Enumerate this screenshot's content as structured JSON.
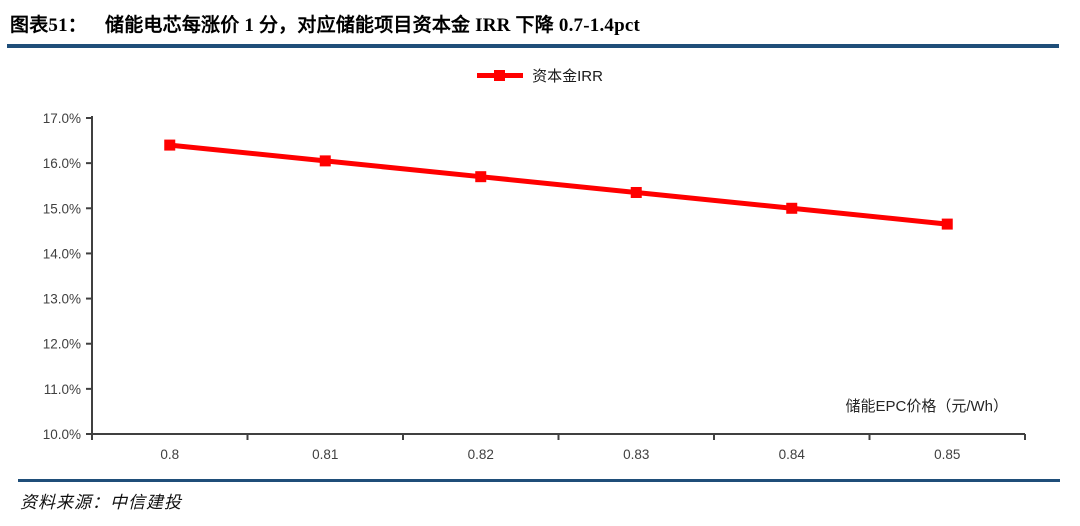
{
  "header": {
    "figure_label": "图表51：",
    "title": "储能电芯每涨价 1 分，对应储能项目资本金 IRR 下降 0.7-1.4pct"
  },
  "footer": {
    "source": "资料来源：中信建投"
  },
  "colors": {
    "accent_red": "#FF0000",
    "divider_blue": "#1F4E79",
    "axis": "#404040",
    "tick_label": "#404040",
    "axis_title": "#262626"
  },
  "chart_data": {
    "type": "line",
    "title": "储能电芯每涨价 1 分，对应储能项目资本金 IRR 下降 0.7-1.4pct",
    "x_labels": [
      "0.8",
      "0.81",
      "0.82",
      "0.83",
      "0.84",
      "0.85"
    ],
    "series": [
      {
        "name": "资本金IRR",
        "color": "#FF0000",
        "values": [
          16.4,
          16.05,
          15.7,
          15.35,
          15.0,
          14.65
        ]
      }
    ],
    "ylim": [
      10.0,
      17.0
    ],
    "y_tick_step": 1.0,
    "y_tick_suffix": "%",
    "x_axis_label": "储能EPC价格（元/Wh）",
    "legend_position": "top-center",
    "grid": false
  }
}
